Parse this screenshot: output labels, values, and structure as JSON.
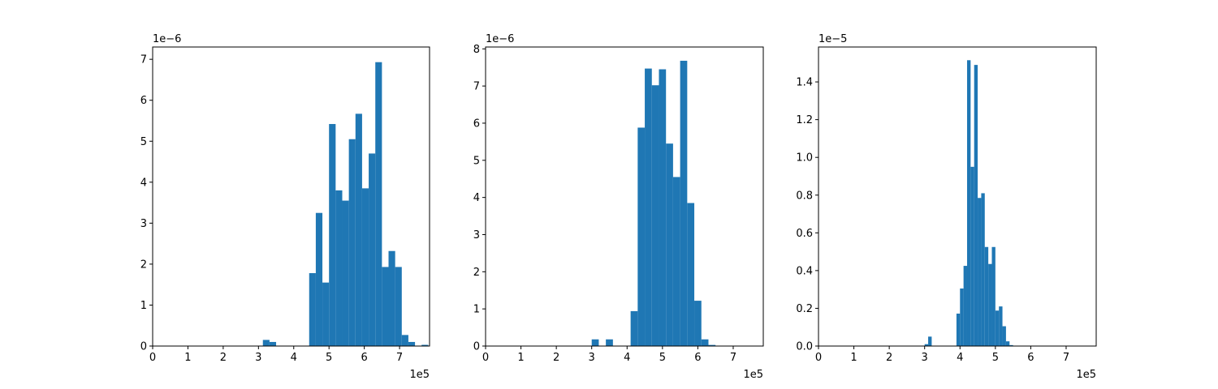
{
  "chart_data": [
    {
      "type": "bar",
      "subtype": "histogram",
      "xlim": [
        0,
        785000
      ],
      "ylim": [
        0,
        7.3e-06
      ],
      "x_offset_label": "1e5",
      "y_offset_label": "1e−6",
      "x_ticks": [
        0,
        100000,
        200000,
        300000,
        400000,
        500000,
        600000,
        700000
      ],
      "x_tick_labels": [
        "0",
        "1",
        "2",
        "3",
        "4",
        "5",
        "6",
        "7"
      ],
      "y_ticks": [
        0,
        1e-06,
        2e-06,
        3e-06,
        4e-06,
        5e-06,
        6e-06,
        7e-06
      ],
      "y_tick_labels": [
        "0",
        "1",
        "2",
        "3",
        "4",
        "5",
        "6",
        "7"
      ],
      "bin_width": 18750,
      "bins": [
        {
          "x0": 312500,
          "value": 1.5e-07
        },
        {
          "x0": 331250,
          "value": 1e-07
        },
        {
          "x0": 443750,
          "value": 1.78e-06
        },
        {
          "x0": 462500,
          "value": 3.25e-06
        },
        {
          "x0": 481250,
          "value": 1.55e-06
        },
        {
          "x0": 500000,
          "value": 5.42e-06
        },
        {
          "x0": 518750,
          "value": 3.8e-06
        },
        {
          "x0": 537500,
          "value": 3.55e-06
        },
        {
          "x0": 556250,
          "value": 5.05e-06
        },
        {
          "x0": 575000,
          "value": 5.67e-06
        },
        {
          "x0": 593750,
          "value": 3.85e-06
        },
        {
          "x0": 612500,
          "value": 4.7e-06
        },
        {
          "x0": 631250,
          "value": 6.93e-06
        },
        {
          "x0": 650000,
          "value": 1.93e-06
        },
        {
          "x0": 668750,
          "value": 2.32e-06
        },
        {
          "x0": 687500,
          "value": 1.93e-06
        },
        {
          "x0": 706250,
          "value": 2.7e-07
        },
        {
          "x0": 725000,
          "value": 1e-07
        },
        {
          "x0": 762500,
          "value": 3e-08
        }
      ],
      "color": "#1f77b4"
    },
    {
      "type": "bar",
      "subtype": "histogram",
      "xlim": [
        0,
        785000
      ],
      "ylim": [
        0,
        8.05e-06
      ],
      "x_offset_label": "1e5",
      "y_offset_label": "1e−6",
      "x_ticks": [
        0,
        100000,
        200000,
        300000,
        400000,
        500000,
        600000,
        700000
      ],
      "x_tick_labels": [
        "0",
        "1",
        "2",
        "3",
        "4",
        "5",
        "6",
        "7"
      ],
      "y_ticks": [
        0,
        1e-06,
        2e-06,
        3e-06,
        4e-06,
        5e-06,
        6e-06,
        7e-06,
        8e-06
      ],
      "y_tick_labels": [
        "0",
        "1",
        "2",
        "3",
        "4",
        "5",
        "6",
        "7",
        "8"
      ],
      "bin_width": 20000,
      "bins": [
        {
          "x0": 300000,
          "value": 1.8e-07
        },
        {
          "x0": 340000,
          "value": 1.8e-07
        },
        {
          "x0": 410000,
          "value": 9.4e-07
        },
        {
          "x0": 430000,
          "value": 5.88e-06
        },
        {
          "x0": 450000,
          "value": 7.47e-06
        },
        {
          "x0": 470000,
          "value": 7.02e-06
        },
        {
          "x0": 490000,
          "value": 7.45e-06
        },
        {
          "x0": 510000,
          "value": 5.45e-06
        },
        {
          "x0": 530000,
          "value": 4.55e-06
        },
        {
          "x0": 550000,
          "value": 7.68e-06
        },
        {
          "x0": 570000,
          "value": 3.85e-06
        },
        {
          "x0": 590000,
          "value": 1.22e-06
        },
        {
          "x0": 610000,
          "value": 1.8e-07
        },
        {
          "x0": 630000,
          "value": 3e-08
        }
      ],
      "color": "#1f77b4"
    },
    {
      "type": "bar",
      "subtype": "histogram",
      "xlim": [
        0,
        785000
      ],
      "ylim": [
        0,
        1.585e-05
      ],
      "x_offset_label": "1e5",
      "y_offset_label": "1e−5",
      "x_ticks": [
        0,
        100000,
        200000,
        300000,
        400000,
        500000,
        600000,
        700000
      ],
      "x_tick_labels": [
        "0",
        "1",
        "2",
        "3",
        "4",
        "5",
        "6",
        "7"
      ],
      "y_ticks": [
        0,
        2e-06,
        4e-06,
        6e-06,
        8e-06,
        1e-05,
        1.2e-05,
        1.4e-05
      ],
      "y_tick_labels": [
        "0.0",
        "0.2",
        "0.4",
        "0.6",
        "0.8",
        "1.0",
        "1.2",
        "1.4"
      ],
      "bin_width": 10000,
      "bins": [
        {
          "x0": 300000,
          "value": 1e-07
        },
        {
          "x0": 310000,
          "value": 5e-07
        },
        {
          "x0": 390000,
          "value": 1.72e-06
        },
        {
          "x0": 400000,
          "value": 3.05e-06
        },
        {
          "x0": 410000,
          "value": 4.25e-06
        },
        {
          "x0": 420000,
          "value": 1.515e-05
        },
        {
          "x0": 430000,
          "value": 9.5e-06
        },
        {
          "x0": 440000,
          "value": 1.49e-05
        },
        {
          "x0": 450000,
          "value": 7.85e-06
        },
        {
          "x0": 460000,
          "value": 8.1e-06
        },
        {
          "x0": 470000,
          "value": 5.25e-06
        },
        {
          "x0": 480000,
          "value": 4.35e-06
        },
        {
          "x0": 490000,
          "value": 5.25e-06
        },
        {
          "x0": 500000,
          "value": 1.88e-06
        },
        {
          "x0": 510000,
          "value": 2.1e-06
        },
        {
          "x0": 520000,
          "value": 1.05e-06
        },
        {
          "x0": 530000,
          "value": 2.5e-07
        },
        {
          "x0": 540000,
          "value": 5e-08
        }
      ],
      "color": "#1f77b4"
    }
  ]
}
